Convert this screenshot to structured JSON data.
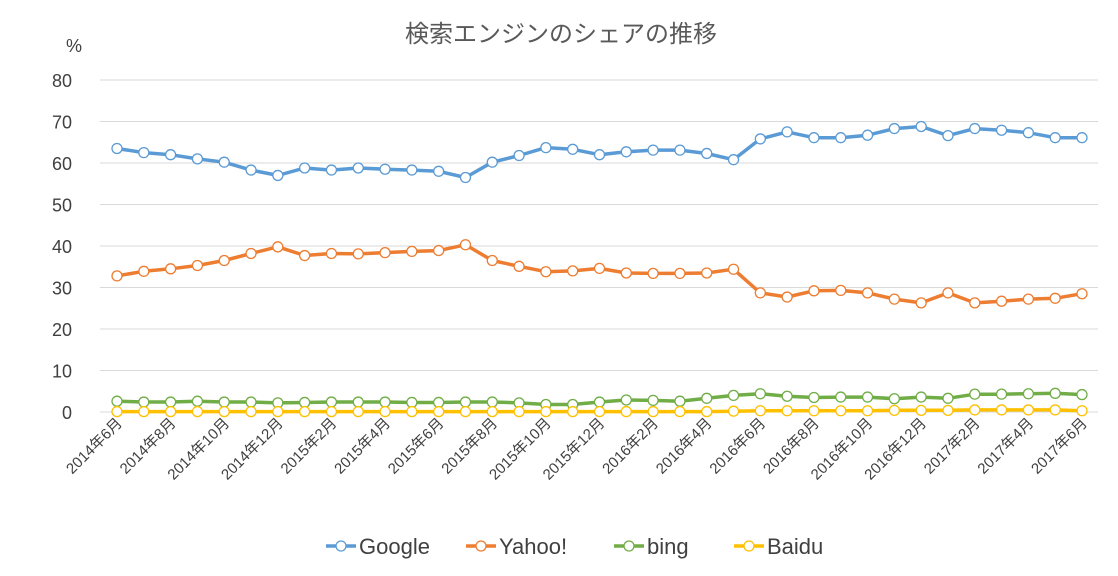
{
  "chart_data": {
    "type": "line",
    "title": "検索エンジンのシェアの推移",
    "y_unit": "%",
    "ylim": [
      0,
      80
    ],
    "y_ticks": [
      0,
      10,
      20,
      30,
      40,
      50,
      60,
      70,
      80
    ],
    "grid": true,
    "legend_position": "bottom",
    "x": [
      "2014年6月",
      "2014年7月",
      "2014年8月",
      "2014年9月",
      "2014年10月",
      "2014年11月",
      "2014年12月",
      "2015年1月",
      "2015年2月",
      "2015年3月",
      "2015年4月",
      "2015年5月",
      "2015年6月",
      "2015年7月",
      "2015年8月",
      "2015年9月",
      "2015年10月",
      "2015年11月",
      "2015年12月",
      "2016年1月",
      "2016年2月",
      "2016年3月",
      "2016年4月",
      "2016年5月",
      "2016年6月",
      "2016年7月",
      "2016年8月",
      "2016年9月",
      "2016年10月",
      "2016年11月",
      "2016年12月",
      "2017年1月",
      "2017年2月",
      "2017年3月",
      "2017年4月",
      "2017年5月",
      "2017年6月"
    ],
    "x_tick_labels": [
      "2014年6月",
      "2014年8月",
      "2014年10月",
      "2014年12月",
      "2015年2月",
      "2015年4月",
      "2015年6月",
      "2015年8月",
      "2015年10月",
      "2015年12月",
      "2016年2月",
      "2016年4月",
      "2016年6月",
      "2016年8月",
      "2016年10月",
      "2016年12月",
      "2017年2月",
      "2017年4月",
      "2017年6月"
    ],
    "series": [
      {
        "name": "Google",
        "color": "#5b9bd5",
        "values": [
          63.5,
          62.5,
          62,
          61,
          60.2,
          58.3,
          57,
          58.8,
          58.3,
          58.8,
          58.5,
          58.3,
          58,
          56.5,
          60.2,
          61.8,
          63.7,
          63.3,
          62,
          62.7,
          63.1,
          63.1,
          62.3,
          60.8,
          65.8,
          67.5,
          66.1,
          66.1,
          66.7,
          68.3,
          68.8,
          66.6,
          68.3,
          67.9,
          67.3,
          66.1,
          66.1
        ]
      },
      {
        "name": "Yahoo!",
        "color": "#ed7d31",
        "values": [
          32.8,
          33.9,
          34.5,
          35.3,
          36.5,
          38.2,
          39.8,
          37.7,
          38.2,
          38.1,
          38.4,
          38.7,
          38.9,
          40.3,
          36.5,
          35.1,
          33.8,
          34,
          34.6,
          33.5,
          33.4,
          33.4,
          33.5,
          34.4,
          28.7,
          27.7,
          29.2,
          29.3,
          28.7,
          27.2,
          26.3,
          28.7,
          26.3,
          26.7,
          27.2,
          27.4,
          28.5
        ]
      },
      {
        "name": "bing",
        "color": "#70ad47",
        "values": [
          2.6,
          2.4,
          2.4,
          2.6,
          2.4,
          2.4,
          2.2,
          2.3,
          2.4,
          2.4,
          2.4,
          2.3,
          2.3,
          2.4,
          2.4,
          2.2,
          1.8,
          1.8,
          2.4,
          2.9,
          2.8,
          2.6,
          3.3,
          4,
          4.4,
          3.8,
          3.5,
          3.6,
          3.6,
          3.2,
          3.6,
          3.3,
          4.3,
          4.3,
          4.4,
          4.5,
          4.2
        ]
      },
      {
        "name": "Baidu",
        "color": "#ffc000",
        "values": [
          0.1,
          0.1,
          0.1,
          0.1,
          0.1,
          0.1,
          0.1,
          0.1,
          0.1,
          0.1,
          0.1,
          0.1,
          0.1,
          0.1,
          0.1,
          0.1,
          0.1,
          0.1,
          0.1,
          0.1,
          0.1,
          0.1,
          0.1,
          0.2,
          0.3,
          0.3,
          0.3,
          0.3,
          0.3,
          0.4,
          0.4,
          0.4,
          0.5,
          0.5,
          0.5,
          0.5,
          0.3
        ]
      }
    ]
  }
}
